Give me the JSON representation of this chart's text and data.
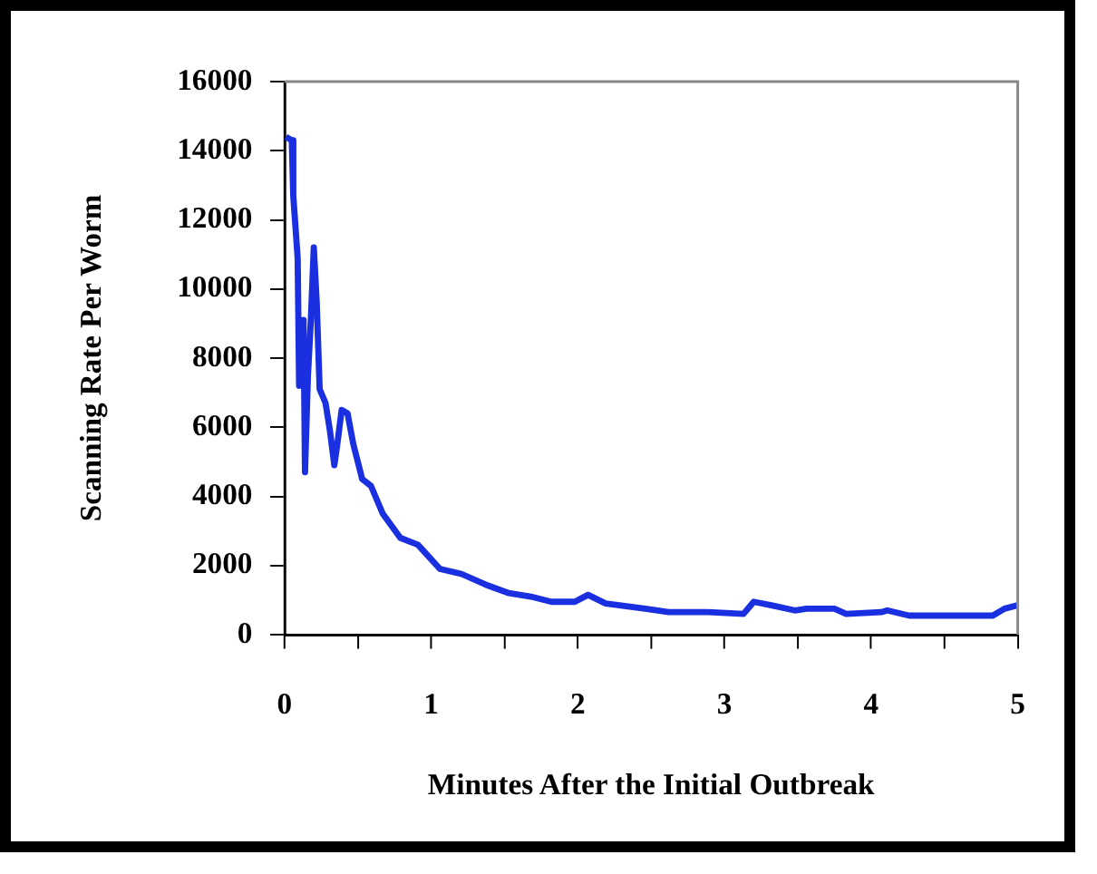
{
  "chart_data": {
    "type": "line",
    "xlabel": "Minutes After the Initial Outbreak",
    "ylabel": "Scanning Rate Per Worm",
    "xlim": [
      0,
      5
    ],
    "xticks": [
      0,
      {
        "value": 0.5,
        "label": null
      },
      1,
      {
        "value": 1.5,
        "label": null
      },
      2,
      {
        "value": 2.5,
        "label": null
      },
      3,
      {
        "value": 3.5,
        "label": null
      },
      4,
      {
        "value": 4.5,
        "label": null
      },
      5
    ],
    "ylim": [
      0,
      16000
    ],
    "yticks": [
      0,
      2000,
      4000,
      6000,
      8000,
      10000,
      12000,
      14000,
      16000
    ],
    "grid": false,
    "legend": false,
    "marker": "none",
    "line_style": "solid",
    "series": [
      {
        "color": "#1a2fe0",
        "x": [
          0.01,
          0.05,
          0.06,
          0.09,
          0.1,
          0.13,
          0.14,
          0.16,
          0.18,
          0.2,
          0.22,
          0.24,
          0.28,
          0.31,
          0.34,
          0.36,
          0.39,
          0.43,
          0.47,
          0.53,
          0.59,
          0.67,
          0.79,
          0.91,
          1.06,
          1.21,
          1.37,
          1.53,
          1.68,
          1.82,
          1.98,
          2.07,
          2.19,
          2.46,
          2.62,
          2.89,
          3.13,
          3.2,
          3.32,
          3.48,
          3.56,
          3.75,
          3.83,
          4.07,
          4.11,
          4.26,
          4.57,
          4.83,
          4.91,
          5.0
        ],
        "values": [
          14400,
          14300,
          12700,
          10900,
          7200,
          9100,
          4700,
          7500,
          9100,
          11200,
          9600,
          7100,
          6700,
          5900,
          4900,
          5500,
          6500,
          6400,
          5500,
          4500,
          4300,
          3500,
          2800,
          2600,
          1900,
          1750,
          1450,
          1200,
          1100,
          950,
          950,
          1150,
          900,
          750,
          650,
          650,
          600,
          950,
          850,
          700,
          750,
          750,
          600,
          650,
          700,
          550,
          550,
          550,
          750,
          850
        ]
      }
    ]
  }
}
